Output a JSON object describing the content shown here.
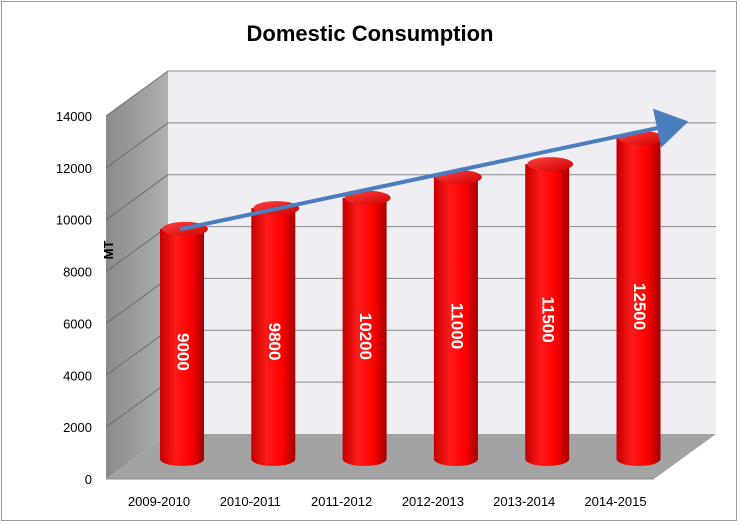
{
  "chart_data": {
    "type": "bar",
    "title": "Domestic Consumption",
    "xlabel": "",
    "ylabel": "MT",
    "categories": [
      "2009-2010",
      "2010-2011",
      "2011-2012",
      "2012-2013",
      "2013-2014",
      "2014-2015"
    ],
    "values": [
      9000,
      9800,
      10200,
      11000,
      11500,
      12500
    ],
    "data_labels": [
      "9000",
      "9800",
      "10200",
      "11000",
      "11500",
      "12500"
    ],
    "ylim": [
      0,
      14000
    ],
    "yticks": [
      0,
      2000,
      4000,
      6000,
      8000,
      10000,
      12000,
      14000
    ],
    "ytick_labels": [
      "0",
      "2000",
      "4000",
      "6000",
      "8000",
      "10000",
      "12000",
      "14000"
    ],
    "grid": true,
    "style": "3d-cylinder",
    "trend_arrow": true,
    "colors": {
      "bar": "#ff0000",
      "bar_dark": "#b30000",
      "wall": "#efeff3",
      "side_wall": "#9c9c9c",
      "floor": "#a3a3a3",
      "arrow": "#4a7ebf"
    }
  }
}
